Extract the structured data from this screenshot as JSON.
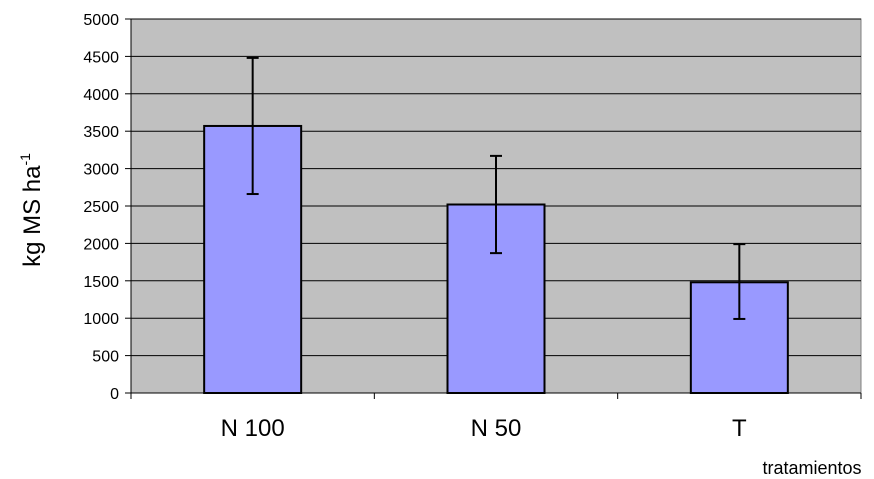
{
  "chart_data": {
    "type": "bar",
    "categories": [
      "N 100",
      "N 50",
      "T"
    ],
    "values": [
      3570,
      2520,
      1480
    ],
    "error_bars": {
      "upper": [
        4480,
        3170,
        1990
      ],
      "lower": [
        2660,
        1870,
        990
      ]
    },
    "ylim": [
      0,
      5000
    ],
    "yticks": [
      "0",
      "500",
      "1000",
      "1500",
      "2000",
      "2500",
      "3000",
      "3500",
      "4000",
      "4500",
      "5000"
    ],
    "ylabel": "kg MS ha",
    "ylabel_superscript": "-1",
    "xlabel": "tratamientos",
    "grid": true,
    "legend": "none",
    "colors": {
      "bar_fill": "#9999ff",
      "plot_background": "#c0c0c0",
      "gridline": "#000000",
      "bar_stroke": "#000000"
    }
  }
}
